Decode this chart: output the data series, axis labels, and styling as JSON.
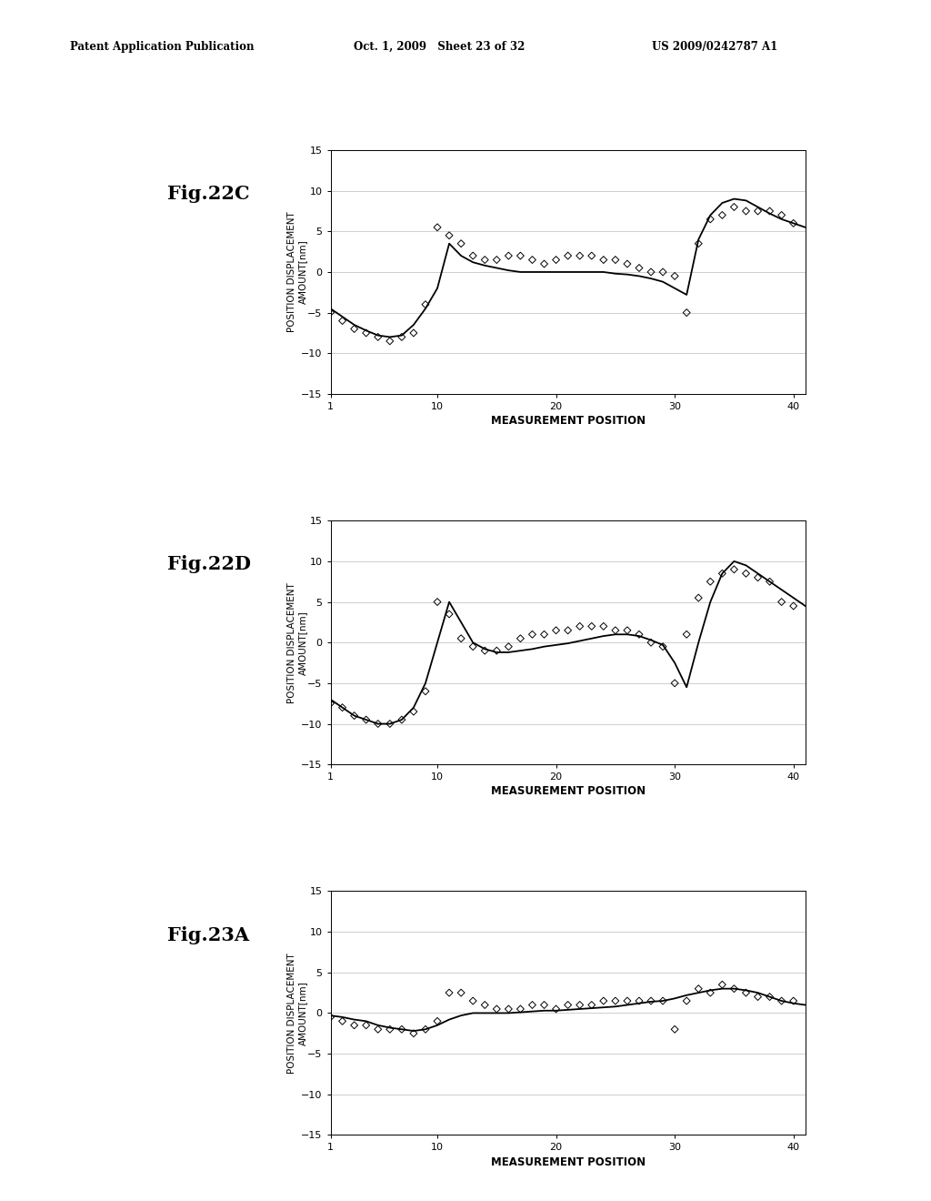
{
  "header_left": "Patent Application Publication",
  "header_mid": "Oct. 1, 2009   Sheet 23 of 32",
  "header_right": "US 2009/0242787 A1",
  "fig_labels": [
    "Fig.22C",
    "Fig.22D",
    "Fig.23A"
  ],
  "xlabel": "MEASUREMENT POSITION",
  "ylabel_line1": "POSITION DISPLACEMENT",
  "ylabel_line2": "AMOUNT[nm]",
  "ylim": [
    -15,
    15
  ],
  "yticks": [
    -15,
    -10,
    -5,
    0,
    5,
    10,
    15
  ],
  "xlim": [
    1,
    41
  ],
  "xticks": [
    1,
    10,
    20,
    30,
    40
  ],
  "background_color": "#ffffff",
  "line_color": "#000000",
  "scatter_color": "#000000",
  "fig22C_line_x": [
    1,
    2,
    3,
    4,
    5,
    6,
    7,
    8,
    9,
    10,
    11,
    12,
    13,
    14,
    15,
    16,
    17,
    18,
    19,
    20,
    21,
    22,
    23,
    24,
    25,
    26,
    27,
    28,
    29,
    30,
    31,
    32,
    33,
    34,
    35,
    36,
    37,
    38,
    39,
    40,
    41
  ],
  "fig22C_line_y": [
    -4.5,
    -5.5,
    -6.5,
    -7.2,
    -7.8,
    -8.0,
    -7.8,
    -6.5,
    -4.5,
    -2.0,
    3.5,
    2.0,
    1.2,
    0.8,
    0.5,
    0.2,
    0.0,
    0.0,
    0.0,
    0.0,
    0.0,
    0.0,
    0.0,
    0.0,
    -0.2,
    -0.3,
    -0.5,
    -0.8,
    -1.2,
    -2.0,
    -2.8,
    4.0,
    7.0,
    8.5,
    9.0,
    8.8,
    8.0,
    7.2,
    6.5,
    6.0,
    5.5
  ],
  "fig22C_scatter_x": [
    1,
    2,
    3,
    4,
    5,
    6,
    7,
    8,
    9,
    10,
    11,
    12,
    13,
    14,
    15,
    16,
    17,
    18,
    19,
    20,
    21,
    22,
    23,
    24,
    25,
    26,
    27,
    28,
    29,
    30,
    31,
    32,
    33,
    34,
    35,
    36,
    37,
    38,
    39,
    40
  ],
  "fig22C_scatter_y": [
    -5.0,
    -6.0,
    -7.0,
    -7.5,
    -8.0,
    -8.5,
    -8.0,
    -7.5,
    -4.0,
    5.5,
    4.5,
    3.5,
    2.0,
    1.5,
    1.5,
    2.0,
    2.0,
    1.5,
    1.0,
    1.5,
    2.0,
    2.0,
    2.0,
    1.5,
    1.5,
    1.0,
    0.5,
    0.0,
    0.0,
    -0.5,
    -5.0,
    3.5,
    6.5,
    7.0,
    8.0,
    7.5,
    7.5,
    7.5,
    7.0,
    6.0
  ],
  "fig22D_line_x": [
    1,
    2,
    3,
    4,
    5,
    6,
    7,
    8,
    9,
    10,
    11,
    12,
    13,
    14,
    15,
    16,
    17,
    18,
    19,
    20,
    21,
    22,
    23,
    24,
    25,
    26,
    27,
    28,
    29,
    30,
    31,
    32,
    33,
    34,
    35,
    36,
    37,
    38,
    39,
    40,
    41
  ],
  "fig22D_line_y": [
    -7.0,
    -8.0,
    -9.0,
    -9.5,
    -10.0,
    -10.0,
    -9.5,
    -8.0,
    -5.0,
    0.0,
    5.0,
    2.5,
    0.0,
    -0.8,
    -1.2,
    -1.2,
    -1.0,
    -0.8,
    -0.5,
    -0.3,
    -0.1,
    0.2,
    0.5,
    0.8,
    1.0,
    1.0,
    0.8,
    0.3,
    -0.3,
    -2.5,
    -5.5,
    0.0,
    5.0,
    8.5,
    10.0,
    9.5,
    8.5,
    7.5,
    6.5,
    5.5,
    4.5
  ],
  "fig22D_scatter_x": [
    1,
    2,
    3,
    4,
    5,
    6,
    7,
    8,
    9,
    10,
    11,
    12,
    13,
    14,
    15,
    16,
    17,
    18,
    19,
    20,
    21,
    22,
    23,
    24,
    25,
    26,
    27,
    28,
    29,
    30,
    31,
    32,
    33,
    34,
    35,
    36,
    37,
    38,
    39,
    40
  ],
  "fig22D_scatter_y": [
    -7.5,
    -8.0,
    -9.0,
    -9.5,
    -10.0,
    -10.0,
    -9.5,
    -8.5,
    -6.0,
    5.0,
    3.5,
    0.5,
    -0.5,
    -1.0,
    -1.0,
    -0.5,
    0.5,
    1.0,
    1.0,
    1.5,
    1.5,
    2.0,
    2.0,
    2.0,
    1.5,
    1.5,
    1.0,
    0.0,
    -0.5,
    -5.0,
    1.0,
    5.5,
    7.5,
    8.5,
    9.0,
    8.5,
    8.0,
    7.5,
    5.0,
    4.5
  ],
  "fig23A_line_x": [
    1,
    2,
    3,
    4,
    5,
    6,
    7,
    8,
    9,
    10,
    11,
    12,
    13,
    14,
    15,
    16,
    17,
    18,
    19,
    20,
    21,
    22,
    23,
    24,
    25,
    26,
    27,
    28,
    29,
    30,
    31,
    32,
    33,
    34,
    35,
    36,
    37,
    38,
    39,
    40,
    41
  ],
  "fig23A_line_y": [
    -0.3,
    -0.5,
    -0.8,
    -1.0,
    -1.5,
    -1.8,
    -2.0,
    -2.2,
    -2.0,
    -1.5,
    -0.8,
    -0.3,
    0.0,
    0.0,
    0.0,
    0.0,
    0.1,
    0.2,
    0.3,
    0.3,
    0.4,
    0.5,
    0.6,
    0.7,
    0.8,
    1.0,
    1.2,
    1.4,
    1.5,
    1.8,
    2.2,
    2.5,
    2.8,
    3.0,
    3.0,
    2.8,
    2.5,
    2.0,
    1.5,
    1.2,
    1.0
  ],
  "fig23A_scatter_x": [
    1,
    2,
    3,
    4,
    5,
    6,
    7,
    8,
    9,
    10,
    11,
    12,
    13,
    14,
    15,
    16,
    17,
    18,
    19,
    20,
    21,
    22,
    23,
    24,
    25,
    26,
    27,
    28,
    29,
    30,
    31,
    32,
    33,
    34,
    35,
    36,
    37,
    38,
    39,
    40
  ],
  "fig23A_scatter_y": [
    -0.5,
    -1.0,
    -1.5,
    -1.5,
    -2.0,
    -2.0,
    -2.0,
    -2.5,
    -2.0,
    -1.0,
    2.5,
    2.5,
    1.5,
    1.0,
    0.5,
    0.5,
    0.5,
    1.0,
    1.0,
    0.5,
    1.0,
    1.0,
    1.0,
    1.5,
    1.5,
    1.5,
    1.5,
    1.5,
    1.5,
    -2.0,
    1.5,
    3.0,
    2.5,
    3.5,
    3.0,
    2.5,
    2.0,
    2.0,
    1.5,
    1.5
  ]
}
